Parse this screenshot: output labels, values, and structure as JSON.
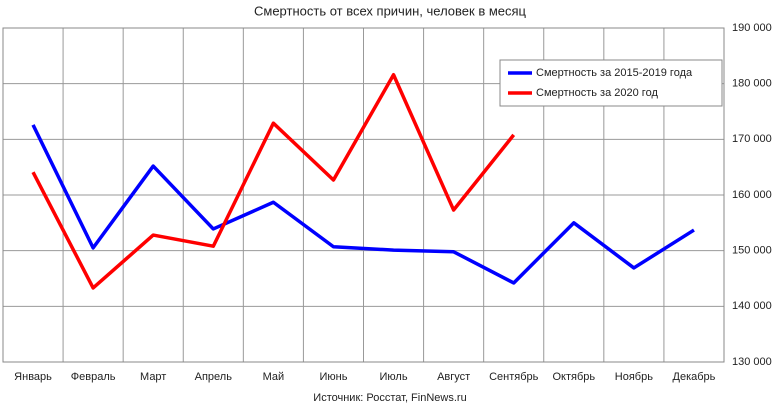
{
  "chart_data": {
    "type": "line",
    "title": "Смертность от всех причин, человек в месяц",
    "source": "Источник: Росстат, FinNews.ru",
    "categories": [
      "Январь",
      "Февраль",
      "Март",
      "Апрель",
      "Май",
      "Июнь",
      "Июль",
      "Август",
      "Сентябрь",
      "Октябрь",
      "Ноябрь",
      "Декабрь"
    ],
    "series": [
      {
        "name": "Смертность за 2015-2019  года",
        "color": "#0000ff",
        "values": [
          172600,
          150500,
          165200,
          153900,
          158700,
          150700,
          150100,
          149800,
          144200,
          155000,
          146900,
          153700
        ]
      },
      {
        "name": "Смертность за 2020  год",
        "color": "#ff0000",
        "values": [
          164100,
          143300,
          152800,
          150800,
          172900,
          162700,
          181600,
          157300,
          170800,
          null,
          null,
          null
        ]
      }
    ],
    "ylim": [
      130000,
      190000
    ],
    "yticks": [
      {
        "value": 130000,
        "label": "130 000"
      },
      {
        "value": 140000,
        "label": "140 000"
      },
      {
        "value": 150000,
        "label": "150 000"
      },
      {
        "value": 160000,
        "label": "160 000"
      },
      {
        "value": 170000,
        "label": "170 000"
      },
      {
        "value": 180000,
        "label": "180 000"
      },
      {
        "value": 190000,
        "label": "190 000"
      }
    ],
    "y_axis_side": "right",
    "grid": true,
    "legend_position": "top-right"
  }
}
